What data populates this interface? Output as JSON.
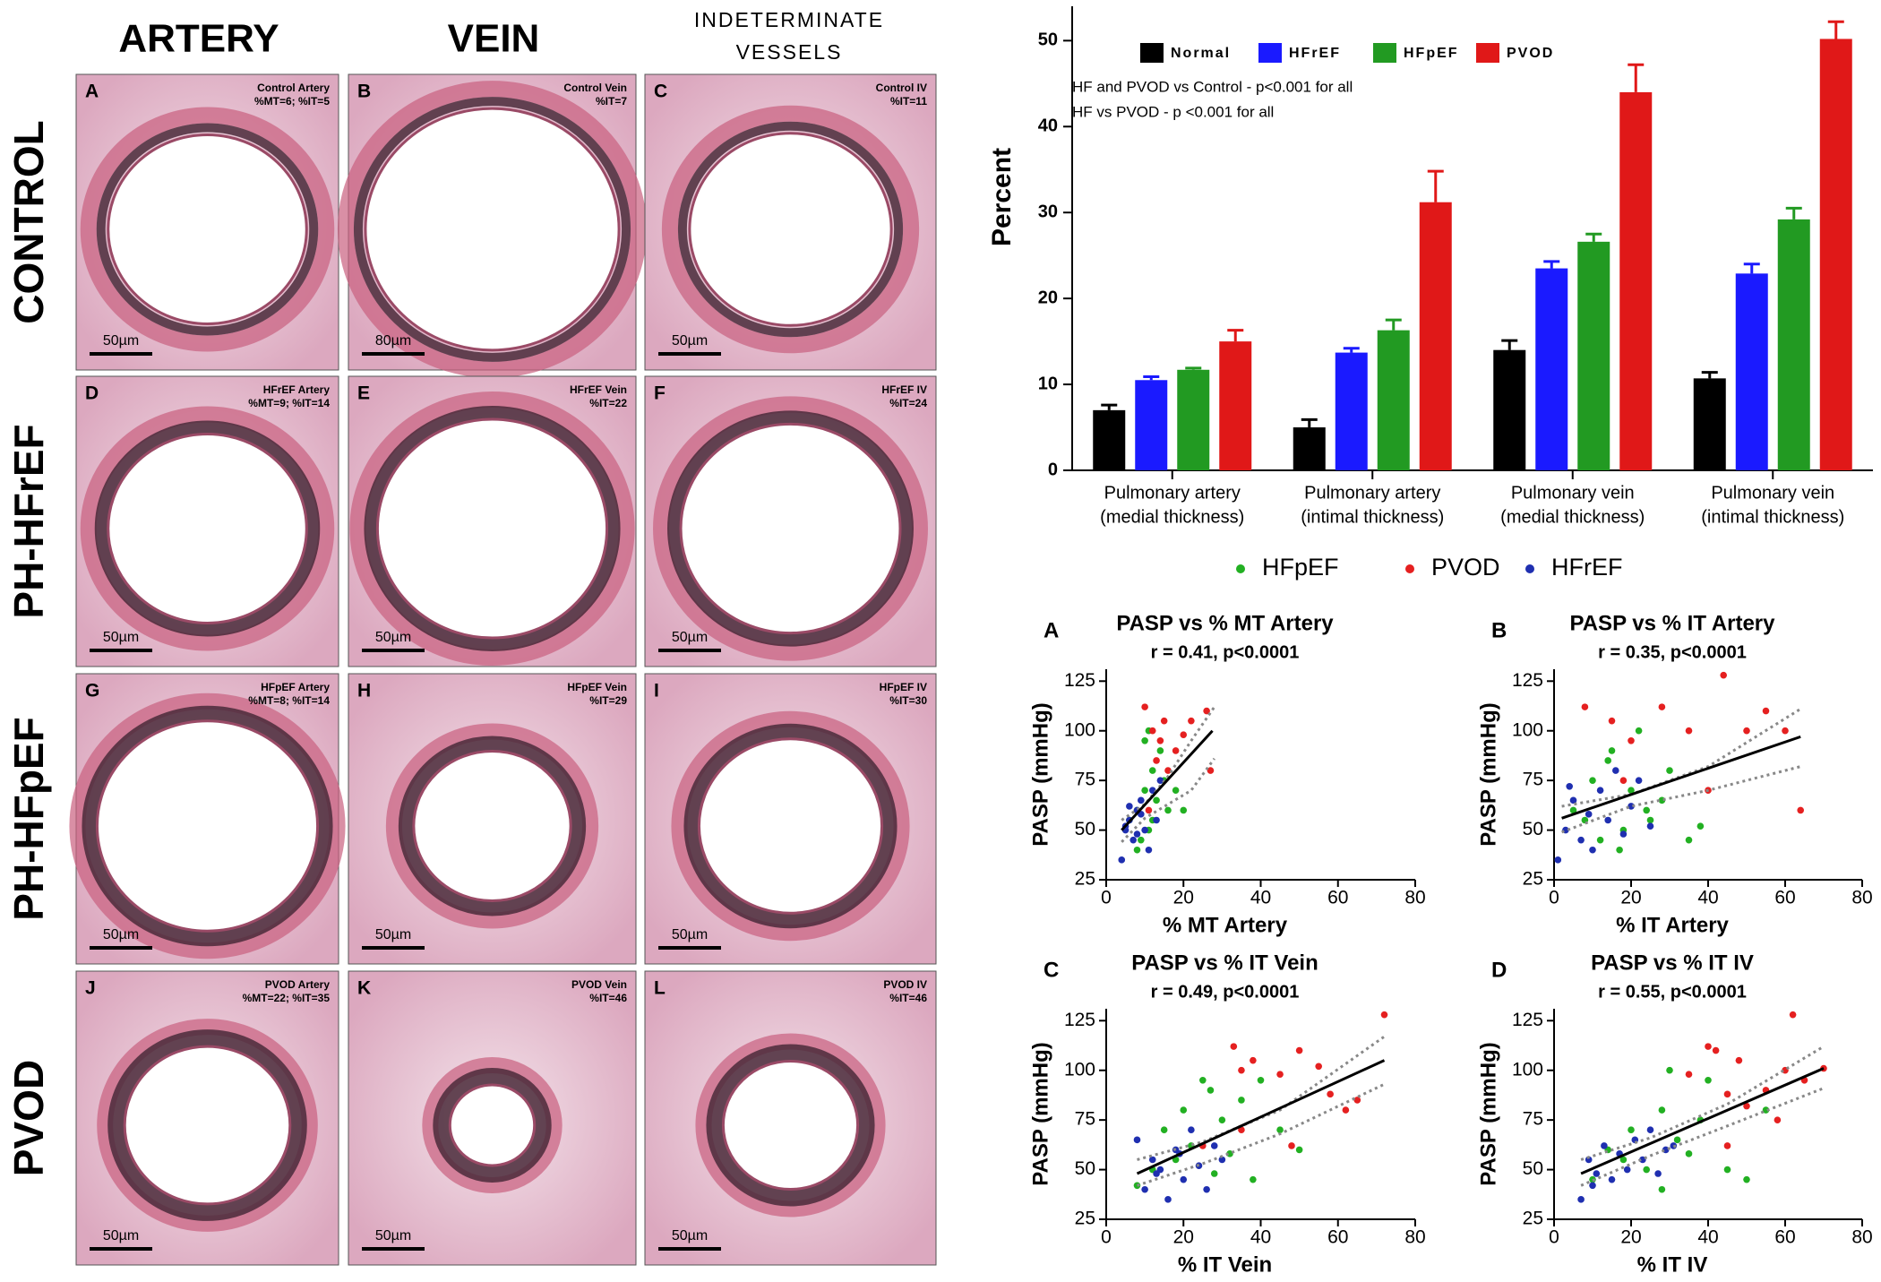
{
  "histology": {
    "columns": [
      [
        "ARTERY"
      ],
      [
        "VEIN"
      ],
      [
        "INDETERMINATE",
        "VESSELS"
      ]
    ],
    "rows": [
      "CONTROL",
      "PH-HFrEF",
      "PH-HFpEF",
      "PVOD"
    ],
    "panels": [
      {
        "letter": "A",
        "caption": [
          "Control Artery",
          "%MT=6; %IT=5"
        ],
        "scale": "50µm"
      },
      {
        "letter": "B",
        "caption": [
          "Control Vein",
          "%IT=7"
        ],
        "scale": "80µm"
      },
      {
        "letter": "C",
        "caption": [
          "Control IV",
          "%IT=11"
        ],
        "scale": "50µm"
      },
      {
        "letter": "D",
        "caption": [
          "HFrEF Artery",
          "%MT=9; %IT=14"
        ],
        "scale": "50µm"
      },
      {
        "letter": "E",
        "caption": [
          "HFrEF Vein",
          "%IT=22"
        ],
        "scale": "50µm"
      },
      {
        "letter": "F",
        "caption": [
          "HFrEF IV",
          "%IT=24"
        ],
        "scale": "50µm"
      },
      {
        "letter": "G",
        "caption": [
          "HFpEF Artery",
          "%MT=8; %IT=14"
        ],
        "scale": "50µm"
      },
      {
        "letter": "H",
        "caption": [
          "HFpEF Vein",
          "%IT=29"
        ],
        "scale": "50µm"
      },
      {
        "letter": "I",
        "caption": [
          "HFpEF IV",
          "%IT=30"
        ],
        "scale": "50µm"
      },
      {
        "letter": "J",
        "caption": [
          "PVOD Artery",
          "%MT=22; %IT=35"
        ],
        "scale": "50µm"
      },
      {
        "letter": "K",
        "caption": [
          "PVOD Vein",
          "%IT=46"
        ],
        "scale": "50µm"
      },
      {
        "letter": "L",
        "caption": [
          "PVOD IV",
          "%IT=46"
        ],
        "scale": "50µm"
      }
    ]
  },
  "scatter_legend": [
    {
      "name": "HFpEF",
      "color": "#22b022"
    },
    {
      "name": "PVOD",
      "color": "#e52020"
    },
    {
      "name": "HFrEF",
      "color": "#1f2fb0"
    }
  ],
  "chart_data": [
    {
      "type": "bar",
      "y_label": "Percent",
      "annotations": [
        "HF and  PVOD vs Control - p<0.001 for all",
        "HF vs PVOD  - p <0.001 for all"
      ],
      "categories": [
        [
          "Pulmonary artery",
          "(medial thickness)"
        ],
        [
          "Pulmonary artery",
          "(intimal thickness)"
        ],
        [
          "Pulmonary vein",
          "(medial thickness)"
        ],
        [
          "Pulmonary vein",
          "(intimal thickness)"
        ]
      ],
      "series": [
        {
          "name": "Normal",
          "color": "#000000",
          "values": [
            7,
            5,
            14,
            10.7
          ],
          "errors": [
            0.6,
            0.9,
            1.1,
            0.7
          ]
        },
        {
          "name": "HFrEF",
          "color": "#1a1aff",
          "values": [
            10.5,
            13.7,
            23.5,
            22.9
          ],
          "errors": [
            0.4,
            0.5,
            0.8,
            1.1
          ]
        },
        {
          "name": "HFpEF",
          "color": "#229a22",
          "values": [
            11.7,
            16.3,
            26.6,
            29.2
          ],
          "errors": [
            0.2,
            1.2,
            0.9,
            1.3
          ]
        },
        {
          "name": "PVOD",
          "color": "#e01818",
          "values": [
            15,
            31.2,
            44,
            50.2
          ],
          "errors": [
            1.3,
            3.6,
            3.2,
            2.0
          ]
        }
      ],
      "ylim": [
        0,
        54
      ],
      "yticks": [
        0,
        10,
        20,
        30,
        40,
        50
      ]
    },
    {
      "type": "scatter",
      "letter": "A",
      "title": "PASP vs % MT Artery",
      "subtitle": "r = 0.41, p<0.0001",
      "x_label": "% MT Artery",
      "y_label": "PASP (mmHg)",
      "xlim": [
        0,
        80
      ],
      "xticks": [
        0,
        20,
        40,
        60,
        80
      ],
      "ylim": [
        25,
        131
      ],
      "yticks": [
        25,
        50,
        75,
        100,
        125
      ],
      "series": [
        {
          "x": [
            6,
            8,
            9,
            10,
            11,
            12,
            13,
            14,
            15,
            16,
            10,
            12,
            8,
            18,
            20,
            11
          ],
          "values": [
            55,
            60,
            45,
            70,
            50,
            80,
            65,
            90,
            75,
            60,
            95,
            55,
            40,
            70,
            60,
            100
          ]
        },
        {
          "x": [
            10,
            12,
            14,
            15,
            13,
            16,
            18,
            20,
            22,
            26,
            27,
            11
          ],
          "values": [
            112,
            100,
            95,
            105,
            85,
            80,
            90,
            98,
            105,
            110,
            80,
            60
          ]
        },
        {
          "x": [
            4,
            5,
            6,
            7,
            8,
            9,
            10,
            11,
            12,
            13,
            6,
            8,
            9,
            14,
            5
          ],
          "values": [
            35,
            50,
            55,
            45,
            60,
            65,
            50,
            40,
            70,
            55,
            62,
            48,
            58,
            75,
            52
          ]
        }
      ],
      "fit": {
        "x": [
          4,
          27.5
        ],
        "y": [
          50,
          100
        ]
      },
      "ci": {
        "x": [
          4,
          10,
          16,
          22,
          28
        ],
        "upper": [
          55,
          63,
          77,
          95,
          112
        ],
        "lower": [
          44,
          56,
          63,
          70,
          86
        ]
      }
    },
    {
      "type": "scatter",
      "letter": "B",
      "title": "PASP vs % IT Artery",
      "subtitle": "r = 0.35, p<0.0001",
      "x_label": "% IT Artery",
      "y_label": "PASP (mmHg)",
      "xlim": [
        0,
        80
      ],
      "xticks": [
        0,
        20,
        40,
        60,
        80
      ],
      "ylim": [
        25,
        131
      ],
      "yticks": [
        25,
        50,
        75,
        100,
        125
      ],
      "series": [
        {
          "x": [
            5,
            8,
            10,
            12,
            15,
            18,
            20,
            22,
            25,
            28,
            30,
            35,
            38,
            14,
            17,
            24
          ],
          "values": [
            60,
            55,
            75,
            45,
            90,
            50,
            70,
            100,
            55,
            65,
            80,
            45,
            52,
            85,
            40,
            60
          ]
        },
        {
          "x": [
            8,
            15,
            20,
            28,
            35,
            40,
            44,
            50,
            55,
            60,
            64,
            18
          ],
          "values": [
            112,
            105,
            95,
            112,
            100,
            70,
            128,
            100,
            110,
            100,
            60,
            75
          ]
        },
        {
          "x": [
            1,
            3,
            5,
            7,
            9,
            10,
            12,
            14,
            16,
            18,
            20,
            22,
            25,
            4
          ],
          "values": [
            35,
            50,
            65,
            45,
            58,
            40,
            70,
            55,
            80,
            48,
            62,
            75,
            52,
            72
          ]
        }
      ],
      "fit": {
        "x": [
          2,
          64
        ],
        "y": [
          56,
          97
        ]
      },
      "ci": {
        "x": [
          2,
          20,
          40,
          64
        ],
        "upper": [
          62,
          68,
          82,
          111
        ],
        "lower": [
          49,
          62,
          70,
          82
        ]
      }
    },
    {
      "type": "scatter",
      "letter": "C",
      "title": "PASP vs % IT Vein",
      "subtitle": "r = 0.49, p<0.0001",
      "x_label": "% IT Vein",
      "y_label": "PASP (mmHg)",
      "xlim": [
        0,
        80
      ],
      "xticks": [
        0,
        20,
        40,
        60,
        80
      ],
      "ylim": [
        25,
        131
      ],
      "yticks": [
        25,
        50,
        75,
        100,
        125
      ],
      "series": [
        {
          "x": [
            8,
            12,
            15,
            18,
            20,
            22,
            25,
            28,
            30,
            32,
            35,
            38,
            40,
            45,
            50,
            27
          ],
          "values": [
            42,
            50,
            70,
            55,
            80,
            62,
            95,
            48,
            75,
            58,
            85,
            45,
            95,
            70,
            60,
            90
          ]
        },
        {
          "x": [
            25,
            33,
            35,
            38,
            45,
            50,
            55,
            58,
            62,
            65,
            72,
            35,
            48
          ],
          "values": [
            62,
            112,
            100,
            105,
            98,
            110,
            102,
            88,
            80,
            85,
            128,
            70,
            62
          ]
        },
        {
          "x": [
            8,
            10,
            12,
            14,
            16,
            18,
            20,
            22,
            24,
            26,
            28,
            30,
            13,
            19
          ],
          "values": [
            65,
            40,
            55,
            50,
            35,
            60,
            45,
            70,
            52,
            40,
            62,
            55,
            48,
            58
          ]
        }
      ],
      "fit": {
        "x": [
          8,
          72
        ],
        "y": [
          48,
          105
        ]
      },
      "ci": {
        "x": [
          8,
          25,
          45,
          72
        ],
        "upper": [
          55,
          64,
          80,
          117
        ],
        "lower": [
          42,
          53,
          68,
          93
        ]
      }
    },
    {
      "type": "scatter",
      "letter": "D",
      "title": "PASP vs % IT IV",
      "subtitle": "r = 0.55, p<0.0001",
      "x_label": "% IT IV",
      "y_label": "PASP (mmHg)",
      "xlim": [
        0,
        80
      ],
      "xticks": [
        0,
        20,
        40,
        60,
        80
      ],
      "ylim": [
        25,
        131
      ],
      "yticks": [
        25,
        50,
        75,
        100,
        125
      ],
      "series": [
        {
          "x": [
            10,
            14,
            18,
            20,
            24,
            28,
            30,
            32,
            35,
            38,
            40,
            45,
            50,
            55,
            28
          ],
          "values": [
            45,
            60,
            55,
            70,
            50,
            80,
            100,
            65,
            58,
            75,
            95,
            50,
            45,
            80,
            40
          ]
        },
        {
          "x": [
            35,
            40,
            42,
            45,
            48,
            50,
            55,
            58,
            60,
            62,
            65,
            70,
            45
          ],
          "values": [
            98,
            112,
            110,
            88,
            105,
            82,
            90,
            75,
            100,
            128,
            95,
            101,
            62
          ]
        },
        {
          "x": [
            7,
            9,
            11,
            13,
            15,
            17,
            19,
            21,
            23,
            25,
            27,
            29,
            31,
            10
          ],
          "values": [
            35,
            55,
            48,
            62,
            45,
            58,
            50,
            65,
            55,
            70,
            48,
            60,
            62,
            42
          ]
        }
      ],
      "fit": {
        "x": [
          7,
          70
        ],
        "y": [
          48,
          101
        ]
      },
      "ci": {
        "x": [
          7,
          25,
          45,
          70
        ],
        "upper": [
          55,
          66,
          83,
          112
        ],
        "lower": [
          42,
          57,
          72,
          91
        ]
      }
    }
  ]
}
